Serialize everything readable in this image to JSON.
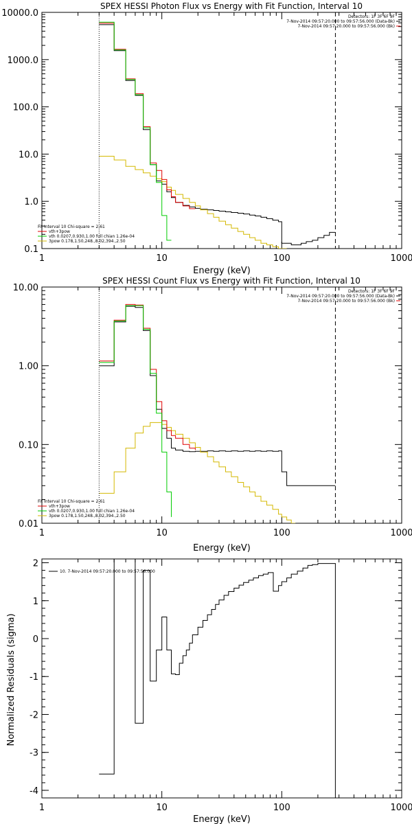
{
  "chart_data": [
    {
      "type": "line",
      "title": "SPEX HESSI Photon Flux vs Energy with Fit Function, Interval 10",
      "xlabel": "Energy (keV)",
      "ylabel": "",
      "xscale": "log",
      "yscale": "log",
      "xlim": [
        1,
        1000
      ],
      "ylim": [
        0.1,
        10000
      ],
      "xtick_values": [
        1,
        10,
        100,
        1000
      ],
      "xtick_labels": [
        "1",
        "10",
        "100",
        "1000"
      ],
      "ytick_values": [
        0.1,
        1,
        10,
        100,
        1000,
        10000
      ],
      "ytick_labels": [
        "0.1",
        "1.0",
        "10.0",
        "100.0",
        "1000.0",
        "10000.0"
      ],
      "header_lines": [
        "Detectors: 1F 3F 6F 9F",
        "7-Nov-2014 09:57:20.000 to 09:57:56.000 (Data-Bk)",
        "7-Nov-2014 09:57:20.000 to 09:57:56.000 (Bk)"
      ],
      "header_colors": [
        "",
        "#000000",
        "#e00000"
      ],
      "legend_position": "bottom-left",
      "legend": [
        {
          "text": "Fit Interval 10   Chi-square = 2.61",
          "color": ""
        },
        {
          "text": "vth+3pow",
          "color": "#e00000"
        },
        {
          "text": "vth 0.0207,0.930,1.00  full chian 1.26e-04",
          "color": "#00cc00"
        },
        {
          "text": "3pow 0.178,1.50,248.,8.02,394.,2.50",
          "color": "#d4b800"
        }
      ],
      "vlines": [
        {
          "x": 3,
          "style": "dotted",
          "color": "#000000"
        },
        {
          "x": 280,
          "style": "dashed",
          "color": "#000000"
        }
      ],
      "series": [
        {
          "id": "data",
          "color": "#000000",
          "x": [
            3,
            4,
            5,
            6,
            7,
            8,
            9,
            10,
            11,
            12,
            13,
            15,
            17,
            19,
            21,
            24,
            27,
            30,
            34,
            38,
            43,
            48,
            54,
            60,
            67,
            75,
            84,
            94,
            100,
            120,
            130,
            145,
            160,
            180,
            200,
            225,
            250,
            280
          ],
          "y": [
            5500,
            1550,
            360,
            175,
            33,
            6,
            2.7,
            2.3,
            1.6,
            1.2,
            0.95,
            0.82,
            0.76,
            0.71,
            0.68,
            0.66,
            0.64,
            0.62,
            0.6,
            0.58,
            0.56,
            0.54,
            0.51,
            0.49,
            0.46,
            0.43,
            0.4,
            0.37,
            0.13,
            0.12,
            0.12,
            0.13,
            0.14,
            0.15,
            0.17,
            0.19,
            0.22,
            0.22
          ]
        },
        {
          "id": "total",
          "color": "#e00000",
          "x": [
            3,
            4,
            5,
            6,
            7,
            8,
            9,
            10,
            11,
            12,
            13,
            15,
            17,
            19
          ],
          "y": [
            5900,
            1650,
            390,
            190,
            38,
            6.5,
            4.5,
            2.9,
            1.75,
            1.25,
            0.95,
            0.8,
            0.7,
            0.7
          ]
        },
        {
          "id": "thermal",
          "color": "#00cc00",
          "x": [
            3,
            4,
            5,
            6,
            7,
            8,
            9,
            10,
            11,
            12
          ],
          "y": [
            6200,
            1600,
            380,
            180,
            36,
            6,
            2.5,
            0.5,
            0.15,
            0.15
          ]
        },
        {
          "id": "powerlaw",
          "color": "#d4b800",
          "x": [
            3,
            4,
            5,
            6,
            7,
            8,
            9,
            10,
            11,
            12,
            13,
            15,
            17,
            19,
            21,
            24,
            27,
            30,
            34,
            38,
            43,
            48,
            54,
            60,
            67,
            75,
            84,
            94,
            100,
            110
          ],
          "y": [
            9,
            7.5,
            5.5,
            4.7,
            4,
            3.4,
            3,
            2.6,
            2,
            1.7,
            1.4,
            1.15,
            0.95,
            0.8,
            0.66,
            0.55,
            0.46,
            0.38,
            0.32,
            0.27,
            0.23,
            0.2,
            0.17,
            0.15,
            0.13,
            0.12,
            0.11,
            0.1,
            0.1,
            0.1
          ]
        }
      ]
    },
    {
      "type": "line",
      "title": "SPEX HESSI Count Flux vs Energy with Fit Function, Interval 10",
      "xlabel": "Energy (keV)",
      "ylabel": "",
      "xscale": "log",
      "yscale": "log",
      "xlim": [
        1,
        1000
      ],
      "ylim": [
        0.01,
        10
      ],
      "xtick_values": [
        1,
        10,
        100,
        1000
      ],
      "xtick_labels": [
        "1",
        "10",
        "100",
        "1000"
      ],
      "ytick_values": [
        0.01,
        0.1,
        1,
        10
      ],
      "ytick_labels": [
        "0.01",
        "0.10",
        "1.00",
        "10.00"
      ],
      "header_lines": [
        "Detectors: 1F 3F 6F 9F",
        "7-Nov-2014 09:57:20.000 to 09:57:56.000 (Data-Bk)",
        "7-Nov-2014 09:57:20.000 to 09:57:56.000 (Bk)"
      ],
      "header_colors": [
        "",
        "#000000",
        "#e00000"
      ],
      "legend_position": "bottom-left",
      "legend": [
        {
          "text": "Fit Interval 10   Chi-square = 2.61",
          "color": ""
        },
        {
          "text": "vth+3pow",
          "color": "#e00000"
        },
        {
          "text": "vth 0.0207,0.930,1.00  full chian 1.26e-04",
          "color": "#00cc00"
        },
        {
          "text": "3pow 0.178,1.50,248.,8.02,394.,2.50",
          "color": "#d4b800"
        }
      ],
      "vlines": [
        {
          "x": 3,
          "style": "dotted",
          "color": "#000000"
        },
        {
          "x": 280,
          "style": "dashed",
          "color": "#000000"
        }
      ],
      "series": [
        {
          "id": "data",
          "color": "#000000",
          "x": [
            3,
            4,
            5,
            6,
            7,
            8,
            9,
            10,
            11,
            12,
            13,
            15,
            17,
            19,
            21,
            24,
            27,
            30,
            34,
            38,
            43,
            48,
            54,
            60,
            67,
            75,
            84,
            94,
            100,
            110,
            130,
            150,
            180,
            210,
            250,
            280
          ],
          "y": [
            1.0,
            3.6,
            5.7,
            5.5,
            2.8,
            0.75,
            0.28,
            0.16,
            0.12,
            0.09,
            0.085,
            0.082,
            0.081,
            0.082,
            0.082,
            0.083,
            0.082,
            0.083,
            0.082,
            0.083,
            0.082,
            0.083,
            0.082,
            0.083,
            0.082,
            0.083,
            0.082,
            0.083,
            0.045,
            0.03,
            0.03,
            0.03,
            0.03,
            0.03,
            0.03,
            0.03
          ]
        },
        {
          "id": "total",
          "color": "#e00000",
          "x": [
            3,
            4,
            5,
            6,
            7,
            8,
            9,
            10,
            11,
            12,
            13,
            15,
            17,
            19
          ],
          "y": [
            1.15,
            3.8,
            6.0,
            5.9,
            3.0,
            0.9,
            0.35,
            0.2,
            0.15,
            0.13,
            0.12,
            0.1,
            0.09,
            0.085
          ]
        },
        {
          "id": "thermal",
          "color": "#00cc00",
          "x": [
            3,
            4,
            5,
            6,
            7,
            8,
            9,
            10,
            11,
            12
          ],
          "y": [
            1.1,
            3.7,
            5.8,
            5.8,
            2.9,
            0.8,
            0.25,
            0.08,
            0.025,
            0.012
          ]
        },
        {
          "id": "powerlaw",
          "color": "#d4b800",
          "x": [
            3,
            4,
            5,
            6,
            7,
            8,
            9,
            10,
            11,
            12,
            13,
            15,
            17,
            19,
            21,
            24,
            27,
            30,
            34,
            38,
            43,
            48,
            54,
            60,
            67,
            75,
            84,
            94,
            100,
            110,
            120,
            130
          ],
          "y": [
            0.024,
            0.045,
            0.09,
            0.14,
            0.17,
            0.19,
            0.19,
            0.18,
            0.165,
            0.15,
            0.135,
            0.12,
            0.105,
            0.092,
            0.08,
            0.07,
            0.06,
            0.052,
            0.045,
            0.039,
            0.033,
            0.029,
            0.025,
            0.022,
            0.019,
            0.017,
            0.015,
            0.013,
            0.012,
            0.011,
            0.01,
            0.01
          ]
        }
      ]
    },
    {
      "type": "line",
      "title": "",
      "xlabel": "Energy (keV)",
      "ylabel": "Normalized Residuals (sigma)",
      "xscale": "log",
      "yscale": "linear",
      "xlim": [
        1,
        1000
      ],
      "ylim": [
        -4.2,
        2.1
      ],
      "xtick_values": [
        1,
        10,
        100,
        1000
      ],
      "xtick_labels": [
        "1",
        "10",
        "100",
        "1000"
      ],
      "ytick_values": [
        -4,
        -3,
        -2,
        -1,
        0,
        1,
        2
      ],
      "ytick_labels": [
        "-4",
        "-3",
        "-2",
        "-1",
        "0",
        "1",
        "2"
      ],
      "header_lines": [],
      "header_colors": [],
      "legend_position": "top-left",
      "legend": [
        {
          "text": "10.  7-Nov-2014 09:57:20.000 to 09:57:56.000",
          "color": "#000000"
        }
      ],
      "vlines": [],
      "series": [
        {
          "id": "residuals",
          "color": "#000000",
          "x": [
            3,
            4,
            5,
            6,
            7,
            8,
            9,
            10,
            11,
            12,
            13,
            14,
            15,
            16,
            17,
            18,
            20,
            22,
            24,
            26,
            28,
            30,
            33,
            36,
            40,
            44,
            48,
            53,
            58,
            64,
            70,
            77,
            85,
            94,
            100,
            110,
            120,
            135,
            150,
            165,
            180,
            200,
            220,
            245,
            270,
            280
          ],
          "y": [
            -3.57,
            2.1,
            2.1,
            -2.23,
            1.8,
            -1.12,
            -0.3,
            0.57,
            -0.3,
            -0.93,
            -0.95,
            -0.65,
            -0.45,
            -0.3,
            -0.12,
            0.1,
            0.3,
            0.48,
            0.63,
            0.77,
            0.9,
            1.02,
            1.14,
            1.24,
            1.33,
            1.41,
            1.48,
            1.54,
            1.6,
            1.66,
            1.7,
            1.74,
            1.25,
            1.4,
            1.5,
            1.6,
            1.7,
            1.78,
            1.86,
            1.93,
            1.95,
            1.98,
            1.98,
            1.98,
            1.98,
            -4.2
          ]
        }
      ]
    }
  ]
}
